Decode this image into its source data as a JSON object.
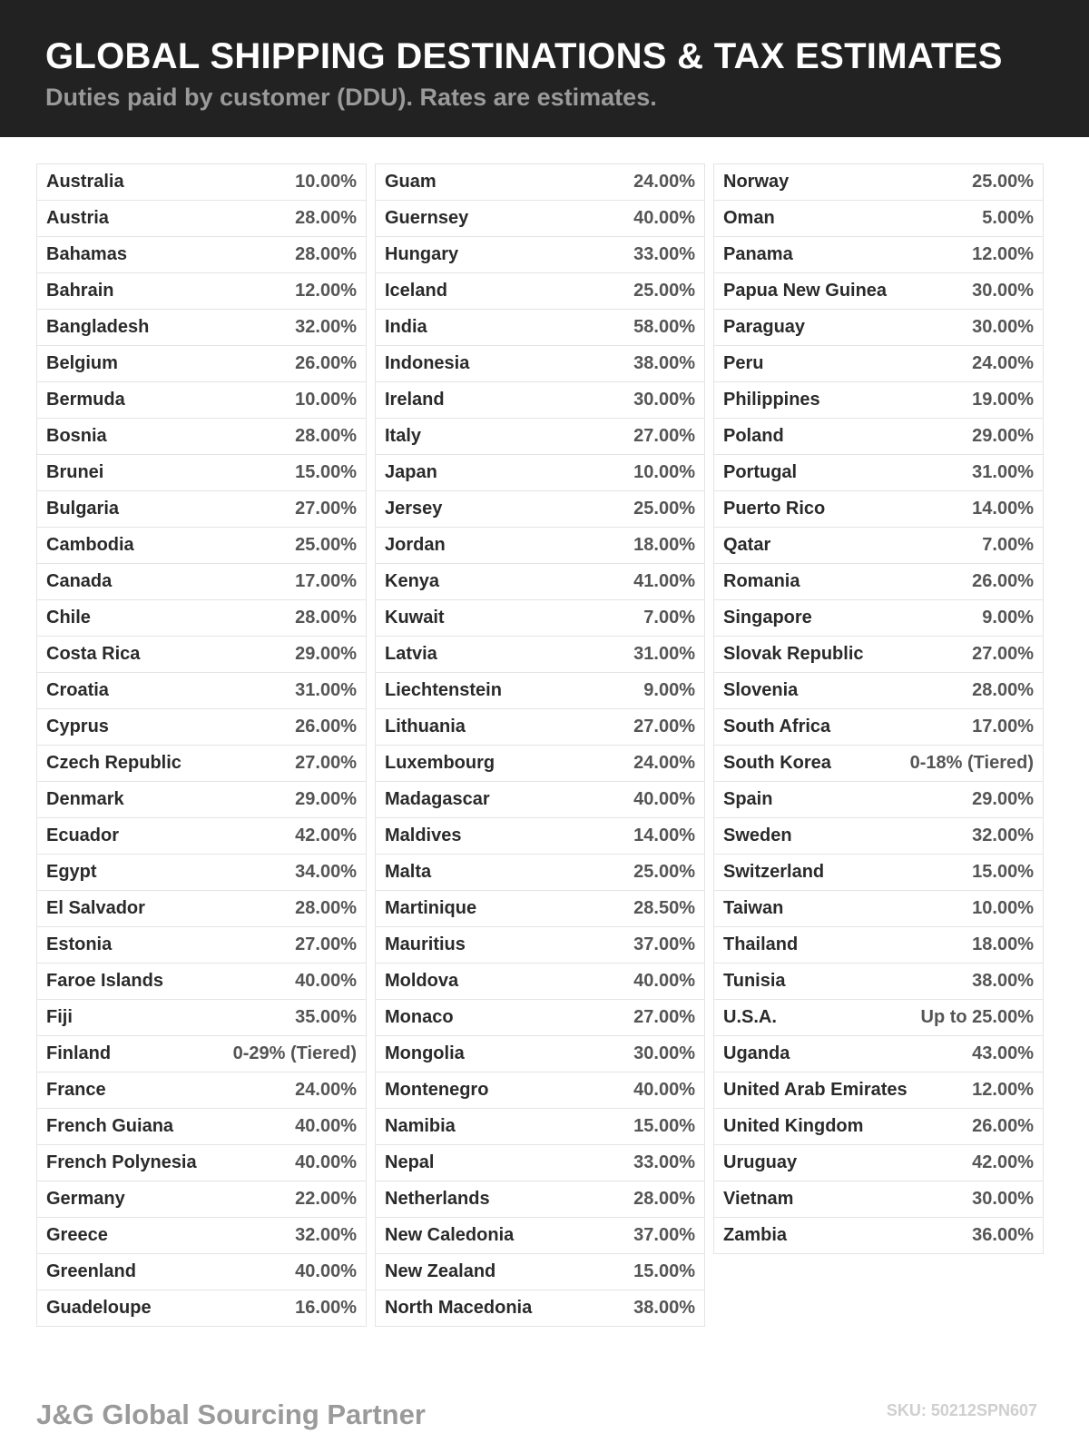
{
  "header": {
    "title": "GLOBAL SHIPPING DESTINATIONS & TAX ESTIMATES",
    "subtitle": "Duties paid by customer (DDU). Rates are estimates."
  },
  "columns": [
    [
      [
        "Australia",
        "10.00%"
      ],
      [
        "Austria",
        "28.00%"
      ],
      [
        "Bahamas",
        "28.00%"
      ],
      [
        "Bahrain",
        "12.00%"
      ],
      [
        "Bangladesh",
        "32.00%"
      ],
      [
        "Belgium",
        "26.00%"
      ],
      [
        "Bermuda",
        "10.00%"
      ],
      [
        "Bosnia",
        "28.00%"
      ],
      [
        "Brunei",
        "15.00%"
      ],
      [
        "Bulgaria",
        "27.00%"
      ],
      [
        "Cambodia",
        "25.00%"
      ],
      [
        "Canada",
        "17.00%"
      ],
      [
        "Chile",
        "28.00%"
      ],
      [
        "Costa Rica",
        "29.00%"
      ],
      [
        "Croatia",
        "31.00%"
      ],
      [
        "Cyprus",
        "26.00%"
      ],
      [
        "Czech Republic",
        "27.00%"
      ],
      [
        "Denmark",
        "29.00%"
      ],
      [
        "Ecuador",
        "42.00%"
      ],
      [
        "Egypt",
        "34.00%"
      ],
      [
        "El Salvador",
        "28.00%"
      ],
      [
        "Estonia",
        "27.00%"
      ],
      [
        "Faroe Islands",
        "40.00%"
      ],
      [
        "Fiji",
        "35.00%"
      ],
      [
        "Finland",
        "0-29% (Tiered)"
      ],
      [
        "France",
        "24.00%"
      ],
      [
        "French Guiana",
        "40.00%"
      ],
      [
        "French Polynesia",
        "40.00%"
      ],
      [
        "Germany",
        "22.00%"
      ],
      [
        "Greece",
        "32.00%"
      ],
      [
        "Greenland",
        "40.00%"
      ],
      [
        "Guadeloupe",
        "16.00%"
      ]
    ],
    [
      [
        "Guam",
        "24.00%"
      ],
      [
        "Guernsey",
        "40.00%"
      ],
      [
        "Hungary",
        "33.00%"
      ],
      [
        "Iceland",
        "25.00%"
      ],
      [
        "India",
        "58.00%"
      ],
      [
        "Indonesia",
        "38.00%"
      ],
      [
        "Ireland",
        "30.00%"
      ],
      [
        "Italy",
        "27.00%"
      ],
      [
        "Japan",
        "10.00%"
      ],
      [
        "Jersey",
        "25.00%"
      ],
      [
        "Jordan",
        "18.00%"
      ],
      [
        "Kenya",
        "41.00%"
      ],
      [
        "Kuwait",
        "7.00%"
      ],
      [
        "Latvia",
        "31.00%"
      ],
      [
        "Liechtenstein",
        "9.00%"
      ],
      [
        "Lithuania",
        "27.00%"
      ],
      [
        "Luxembourg",
        "24.00%"
      ],
      [
        "Madagascar",
        "40.00%"
      ],
      [
        "Maldives",
        "14.00%"
      ],
      [
        "Malta",
        "25.00%"
      ],
      [
        "Martinique",
        "28.50%"
      ],
      [
        "Mauritius",
        "37.00%"
      ],
      [
        "Moldova",
        "40.00%"
      ],
      [
        "Monaco",
        "27.00%"
      ],
      [
        "Mongolia",
        "30.00%"
      ],
      [
        "Montenegro",
        "40.00%"
      ],
      [
        "Namibia",
        "15.00%"
      ],
      [
        "Nepal",
        "33.00%"
      ],
      [
        "Netherlands",
        "28.00%"
      ],
      [
        "New Caledonia",
        "37.00%"
      ],
      [
        "New Zealand",
        "15.00%"
      ],
      [
        "North Macedonia",
        "38.00%"
      ]
    ],
    [
      [
        "Norway",
        "25.00%"
      ],
      [
        "Oman",
        "5.00%"
      ],
      [
        "Panama",
        "12.00%"
      ],
      [
        "Papua New Guinea",
        "30.00%"
      ],
      [
        "Paraguay",
        "30.00%"
      ],
      [
        "Peru",
        "24.00%"
      ],
      [
        "Philippines",
        "19.00%"
      ],
      [
        "Poland",
        "29.00%"
      ],
      [
        "Portugal",
        "31.00%"
      ],
      [
        "Puerto Rico",
        "14.00%"
      ],
      [
        "Qatar",
        "7.00%"
      ],
      [
        "Romania",
        "26.00%"
      ],
      [
        "Singapore",
        "9.00%"
      ],
      [
        "Slovak Republic",
        "27.00%"
      ],
      [
        "Slovenia",
        "28.00%"
      ],
      [
        "South Africa",
        "17.00%"
      ],
      [
        "South Korea",
        "0-18% (Tiered)"
      ],
      [
        "Spain",
        "29.00%"
      ],
      [
        "Sweden",
        "32.00%"
      ],
      [
        "Switzerland",
        "15.00%"
      ],
      [
        "Taiwan",
        "10.00%"
      ],
      [
        "Thailand",
        "18.00%"
      ],
      [
        "Tunisia",
        "38.00%"
      ],
      [
        "U.S.A.",
        "Up to 25.00%"
      ],
      [
        "Uganda",
        "43.00%"
      ],
      [
        "United Arab Emirates",
        "12.00%"
      ],
      [
        "United Kingdom",
        "26.00%"
      ],
      [
        "Uruguay",
        "42.00%"
      ],
      [
        "Vietnam",
        "30.00%"
      ],
      [
        "Zambia",
        "36.00%"
      ]
    ]
  ],
  "footer": {
    "brand": "J&G Global Sourcing Partner",
    "sku": "SKU: 50212SPN607"
  }
}
